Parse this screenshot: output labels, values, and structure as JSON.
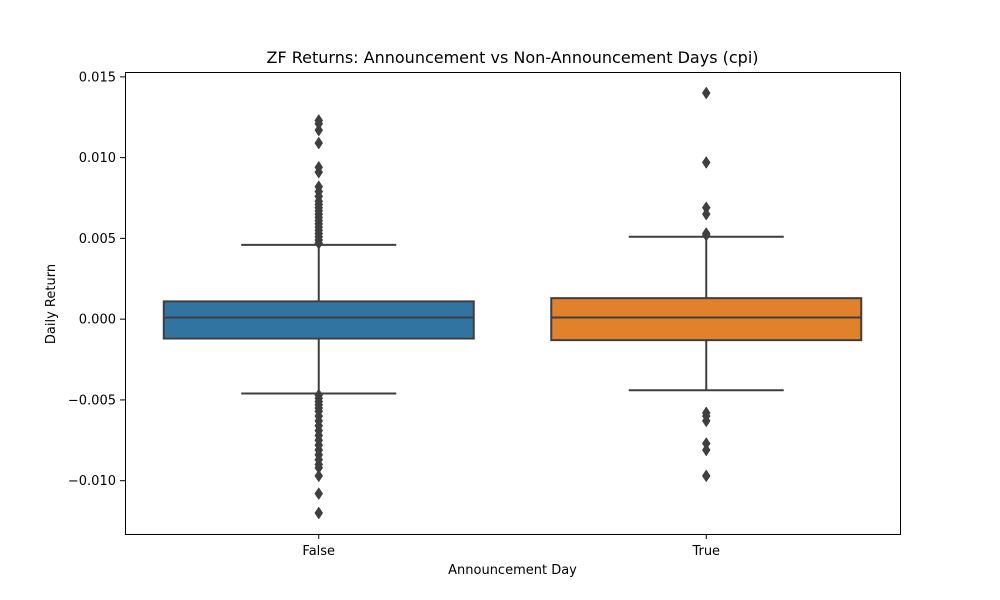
{
  "chart_data": {
    "type": "box",
    "title": "ZF Returns: Announcement vs Non-Announcement Days (cpi)",
    "xlabel": "Announcement Day",
    "ylabel": "Daily Return",
    "ylim": [
      -0.0133,
      0.0153
    ],
    "yticks": [
      {
        "value": 0.015,
        "label": "0.015"
      },
      {
        "value": 0.01,
        "label": "0.010"
      },
      {
        "value": 0.005,
        "label": "0.005"
      },
      {
        "value": 0.0,
        "label": "0.000"
      },
      {
        "value": -0.005,
        "label": "−0.005"
      },
      {
        "value": -0.01,
        "label": "−0.010"
      }
    ],
    "grid": false,
    "legend": "none",
    "categories": [
      "False",
      "True"
    ],
    "boxes": [
      {
        "category": "False",
        "color": "#3274a1",
        "whisker_low": -0.0046,
        "q1": -0.0012,
        "median": 0.0001,
        "q3": 0.0011,
        "whisker_high": 0.0046,
        "outliers": [
          0.0123,
          0.0121,
          0.0117,
          0.0109,
          0.0094,
          0.0091,
          0.0082,
          0.0079,
          0.0076,
          0.0073,
          0.0071,
          0.0069,
          0.0067,
          0.0065,
          0.0063,
          0.0061,
          0.0059,
          0.0057,
          0.0055,
          0.0053,
          0.0051,
          0.0049,
          0.0047,
          -0.0047,
          -0.0049,
          -0.0051,
          -0.0053,
          -0.0055,
          -0.0057,
          -0.006,
          -0.0063,
          -0.0066,
          -0.0069,
          -0.0072,
          -0.0075,
          -0.0078,
          -0.0081,
          -0.0084,
          -0.0087,
          -0.009,
          -0.0092,
          -0.0097,
          -0.0108,
          -0.012
        ]
      },
      {
        "category": "True",
        "color": "#e1812c",
        "whisker_low": -0.0044,
        "q1": -0.0013,
        "median": 0.0001,
        "q3": 0.0013,
        "whisker_high": 0.0051,
        "outliers": [
          0.014,
          0.0097,
          0.0069,
          0.0065,
          0.0053,
          0.0052,
          -0.0058,
          -0.006,
          -0.0063,
          -0.0077,
          -0.0081,
          -0.0097
        ]
      }
    ]
  }
}
